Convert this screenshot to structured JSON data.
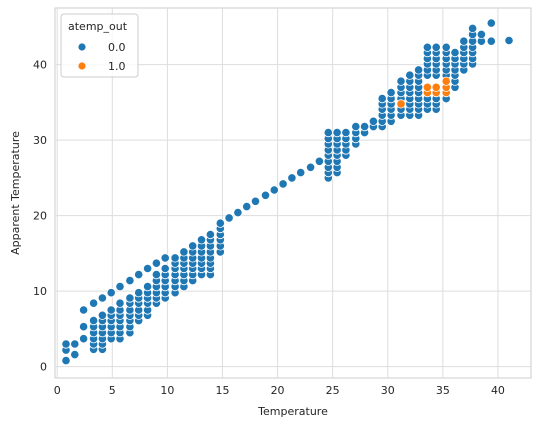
{
  "chart_data": {
    "type": "scatter",
    "title": "",
    "xlabel": "Temperature",
    "ylabel": "Apparent Temperature",
    "xlim": [
      -0.2,
      43.0
    ],
    "ylim": [
      -1.5,
      47.5
    ],
    "xticks": [
      0,
      5,
      10,
      15,
      20,
      25,
      30,
      35,
      40
    ],
    "yticks": [
      0,
      10,
      20,
      30,
      40
    ],
    "grid": true,
    "legend": {
      "title": "atemp_out",
      "placement": "top-left"
    },
    "series": [
      {
        "name": "0.0",
        "color": "#1f77b4",
        "points": [
          [
            0.8,
            0.8
          ],
          [
            0.8,
            2.2
          ],
          [
            0.8,
            3.0
          ],
          [
            1.6,
            1.6
          ],
          [
            1.6,
            3.0
          ],
          [
            2.4,
            3.7
          ],
          [
            2.4,
            5.3
          ],
          [
            2.4,
            7.5
          ],
          [
            3.3,
            2.3
          ],
          [
            3.3,
            3.0
          ],
          [
            3.3,
            3.7
          ],
          [
            3.3,
            4.5
          ],
          [
            3.3,
            5.3
          ],
          [
            3.3,
            6.1
          ],
          [
            3.3,
            8.4
          ],
          [
            4.1,
            2.3
          ],
          [
            4.1,
            3.0
          ],
          [
            4.1,
            3.7
          ],
          [
            4.1,
            4.5
          ],
          [
            4.1,
            5.3
          ],
          [
            4.1,
            6.1
          ],
          [
            4.1,
            6.8
          ],
          [
            4.1,
            9.1
          ],
          [
            4.9,
            3.7
          ],
          [
            4.9,
            4.5
          ],
          [
            4.9,
            5.3
          ],
          [
            4.9,
            6.1
          ],
          [
            4.9,
            6.8
          ],
          [
            4.9,
            7.5
          ],
          [
            4.9,
            9.8
          ],
          [
            5.7,
            3.7
          ],
          [
            5.7,
            4.5
          ],
          [
            5.7,
            5.3
          ],
          [
            5.7,
            6.1
          ],
          [
            5.7,
            6.8
          ],
          [
            5.7,
            7.5
          ],
          [
            5.7,
            8.4
          ],
          [
            5.7,
            10.6
          ],
          [
            6.6,
            4.5
          ],
          [
            6.6,
            5.3
          ],
          [
            6.6,
            6.1
          ],
          [
            6.6,
            6.8
          ],
          [
            6.6,
            7.5
          ],
          [
            6.6,
            8.4
          ],
          [
            6.6,
            9.1
          ],
          [
            6.6,
            11.4
          ],
          [
            7.4,
            6.1
          ],
          [
            7.4,
            6.8
          ],
          [
            7.4,
            7.5
          ],
          [
            7.4,
            8.4
          ],
          [
            7.4,
            9.1
          ],
          [
            7.4,
            9.8
          ],
          [
            7.4,
            12.2
          ],
          [
            8.2,
            6.8
          ],
          [
            8.2,
            7.5
          ],
          [
            8.2,
            8.4
          ],
          [
            8.2,
            9.1
          ],
          [
            8.2,
            9.8
          ],
          [
            8.2,
            10.6
          ],
          [
            8.2,
            13.0
          ],
          [
            9.0,
            8.4
          ],
          [
            9.0,
            9.1
          ],
          [
            9.0,
            9.8
          ],
          [
            9.0,
            10.6
          ],
          [
            9.0,
            11.4
          ],
          [
            9.0,
            12.2
          ],
          [
            9.0,
            13.7
          ],
          [
            9.8,
            9.1
          ],
          [
            9.8,
            9.8
          ],
          [
            9.8,
            10.6
          ],
          [
            9.8,
            11.4
          ],
          [
            9.8,
            12.2
          ],
          [
            9.8,
            13.0
          ],
          [
            9.8,
            14.4
          ],
          [
            10.7,
            9.8
          ],
          [
            10.7,
            10.6
          ],
          [
            10.7,
            11.4
          ],
          [
            10.7,
            12.2
          ],
          [
            10.7,
            13.0
          ],
          [
            10.7,
            13.7
          ],
          [
            10.7,
            14.4
          ],
          [
            11.5,
            10.6
          ],
          [
            11.5,
            11.4
          ],
          [
            11.5,
            12.2
          ],
          [
            11.5,
            13.0
          ],
          [
            11.5,
            13.7
          ],
          [
            11.5,
            14.4
          ],
          [
            11.5,
            15.2
          ],
          [
            12.3,
            11.4
          ],
          [
            12.3,
            12.2
          ],
          [
            12.3,
            13.0
          ],
          [
            12.3,
            13.7
          ],
          [
            12.3,
            14.4
          ],
          [
            12.3,
            15.2
          ],
          [
            12.3,
            16.0
          ],
          [
            13.1,
            12.2
          ],
          [
            13.1,
            13.0
          ],
          [
            13.1,
            13.7
          ],
          [
            13.1,
            14.4
          ],
          [
            13.1,
            15.2
          ],
          [
            13.1,
            16.0
          ],
          [
            13.1,
            16.8
          ],
          [
            13.9,
            12.2
          ],
          [
            13.9,
            13.0
          ],
          [
            13.9,
            13.7
          ],
          [
            13.9,
            14.4
          ],
          [
            13.9,
            15.2
          ],
          [
            13.9,
            16.0
          ],
          [
            13.9,
            16.8
          ],
          [
            13.9,
            17.5
          ],
          [
            14.8,
            15.2
          ],
          [
            14.8,
            16.0
          ],
          [
            14.8,
            16.8
          ],
          [
            14.8,
            17.5
          ],
          [
            14.8,
            18.3
          ],
          [
            14.8,
            19.0
          ],
          [
            15.6,
            19.7
          ],
          [
            16.4,
            20.4
          ],
          [
            17.2,
            21.2
          ],
          [
            18.0,
            21.9
          ],
          [
            18.9,
            22.7
          ],
          [
            19.7,
            23.4
          ],
          [
            20.5,
            24.2
          ],
          [
            21.3,
            25.0
          ],
          [
            22.1,
            25.7
          ],
          [
            23.0,
            26.4
          ],
          [
            23.8,
            27.2
          ],
          [
            24.6,
            25.0
          ],
          [
            24.6,
            25.7
          ],
          [
            24.6,
            26.4
          ],
          [
            24.6,
            27.2
          ],
          [
            24.6,
            28.0
          ],
          [
            24.6,
            28.7
          ],
          [
            24.6,
            29.5
          ],
          [
            24.6,
            30.2
          ],
          [
            24.6,
            31.0
          ],
          [
            25.4,
            25.7
          ],
          [
            25.4,
            26.4
          ],
          [
            25.4,
            27.2
          ],
          [
            25.4,
            28.0
          ],
          [
            25.4,
            28.7
          ],
          [
            25.4,
            29.5
          ],
          [
            25.4,
            30.2
          ],
          [
            25.4,
            31.0
          ],
          [
            26.2,
            28.0
          ],
          [
            26.2,
            28.7
          ],
          [
            26.2,
            29.5
          ],
          [
            26.2,
            30.2
          ],
          [
            26.2,
            31.0
          ],
          [
            27.1,
            29.5
          ],
          [
            27.1,
            30.2
          ],
          [
            27.1,
            31.0
          ],
          [
            27.1,
            31.8
          ],
          [
            27.9,
            31.0
          ],
          [
            27.9,
            31.8
          ],
          [
            28.7,
            31.8
          ],
          [
            28.7,
            32.5
          ],
          [
            29.5,
            31.8
          ],
          [
            29.5,
            32.5
          ],
          [
            29.5,
            33.3
          ],
          [
            29.5,
            34.1
          ],
          [
            29.5,
            34.8
          ],
          [
            29.5,
            35.5
          ],
          [
            30.3,
            32.5
          ],
          [
            30.3,
            33.3
          ],
          [
            30.3,
            34.1
          ],
          [
            30.3,
            34.8
          ],
          [
            30.3,
            35.5
          ],
          [
            30.3,
            36.3
          ],
          [
            31.2,
            33.3
          ],
          [
            31.2,
            34.1
          ],
          [
            31.2,
            35.5
          ],
          [
            31.2,
            36.3
          ],
          [
            31.2,
            37.0
          ],
          [
            31.2,
            37.8
          ],
          [
            32.0,
            33.3
          ],
          [
            32.0,
            34.1
          ],
          [
            32.0,
            34.8
          ],
          [
            32.0,
            35.5
          ],
          [
            32.0,
            36.3
          ],
          [
            32.0,
            37.0
          ],
          [
            32.0,
            37.8
          ],
          [
            32.0,
            38.6
          ],
          [
            32.8,
            33.3
          ],
          [
            32.8,
            34.1
          ],
          [
            32.8,
            34.8
          ],
          [
            32.8,
            35.5
          ],
          [
            32.8,
            36.3
          ],
          [
            32.8,
            37.0
          ],
          [
            32.8,
            37.8
          ],
          [
            32.8,
            38.6
          ],
          [
            32.8,
            39.3
          ],
          [
            33.6,
            34.1
          ],
          [
            33.6,
            34.8
          ],
          [
            33.6,
            35.5
          ],
          [
            33.6,
            38.6
          ],
          [
            33.6,
            39.3
          ],
          [
            33.6,
            40.1
          ],
          [
            33.6,
            40.8
          ],
          [
            33.6,
            41.6
          ],
          [
            33.6,
            42.3
          ],
          [
            34.4,
            34.1
          ],
          [
            34.4,
            34.8
          ],
          [
            34.4,
            35.5
          ],
          [
            34.4,
            38.6
          ],
          [
            34.4,
            39.3
          ],
          [
            34.4,
            40.1
          ],
          [
            34.4,
            40.8
          ],
          [
            34.4,
            41.6
          ],
          [
            34.4,
            42.3
          ],
          [
            35.3,
            35.5
          ],
          [
            35.3,
            38.6
          ],
          [
            35.3,
            39.3
          ],
          [
            35.3,
            40.1
          ],
          [
            35.3,
            40.8
          ],
          [
            35.3,
            41.6
          ],
          [
            35.3,
            42.3
          ],
          [
            36.1,
            37.0
          ],
          [
            36.1,
            37.8
          ],
          [
            36.1,
            38.6
          ],
          [
            36.1,
            39.3
          ],
          [
            36.1,
            40.1
          ],
          [
            36.1,
            40.8
          ],
          [
            36.1,
            41.6
          ],
          [
            36.9,
            39.3
          ],
          [
            36.9,
            40.1
          ],
          [
            36.9,
            40.8
          ],
          [
            36.9,
            41.6
          ],
          [
            36.9,
            42.3
          ],
          [
            36.9,
            43.1
          ],
          [
            37.7,
            40.1
          ],
          [
            37.7,
            40.8
          ],
          [
            37.7,
            41.6
          ],
          [
            37.7,
            42.3
          ],
          [
            37.7,
            43.1
          ],
          [
            37.7,
            44.0
          ],
          [
            37.7,
            44.8
          ],
          [
            38.5,
            43.1
          ],
          [
            38.5,
            44.0
          ],
          [
            39.4,
            43.1
          ],
          [
            39.4,
            45.5
          ],
          [
            41.0,
            43.2
          ]
        ]
      },
      {
        "name": "1.0",
        "color": "#ff7f0e",
        "points": [
          [
            31.2,
            34.8
          ],
          [
            33.6,
            36.3
          ],
          [
            33.6,
            37.0
          ],
          [
            34.4,
            36.3
          ],
          [
            34.4,
            37.0
          ],
          [
            35.3,
            36.3
          ],
          [
            35.3,
            37.0
          ],
          [
            35.3,
            37.8
          ]
        ]
      }
    ]
  }
}
